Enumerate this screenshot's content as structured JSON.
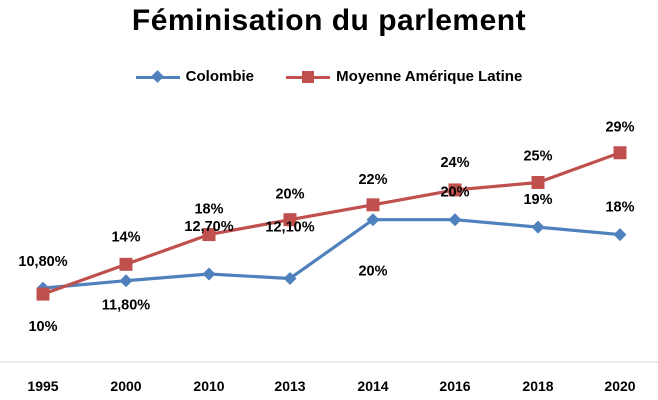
{
  "chart_data": {
    "type": "line",
    "title": "Féminisation du parlement",
    "xlabel": "",
    "ylabel": "",
    "categories": [
      "1995",
      "2000",
      "2010",
      "2013",
      "2014",
      "2016",
      "2018",
      "2020"
    ],
    "ylim": [
      0,
      40
    ],
    "grid": false,
    "legend_position": "top",
    "series": [
      {
        "name": "Colombie",
        "color": "#4F81BD",
        "marker": "diamond",
        "values": [
          10.8,
          11.8,
          12.7,
          12.1,
          20,
          20,
          19,
          18
        ],
        "labels": [
          "10,80%",
          "11,80%",
          "12,70%",
          "12,10%",
          "20%",
          "20%",
          "19%",
          "18%"
        ]
      },
      {
        "name": "Moyenne Amérique Latine",
        "color": "#C0504D",
        "marker": "square",
        "values": [
          10,
          14,
          18,
          20,
          22,
          24,
          25,
          29
        ],
        "labels": [
          "10%",
          "14%",
          "18%",
          "20%",
          "22%",
          "24%",
          "25%",
          "29%"
        ]
      }
    ]
  }
}
